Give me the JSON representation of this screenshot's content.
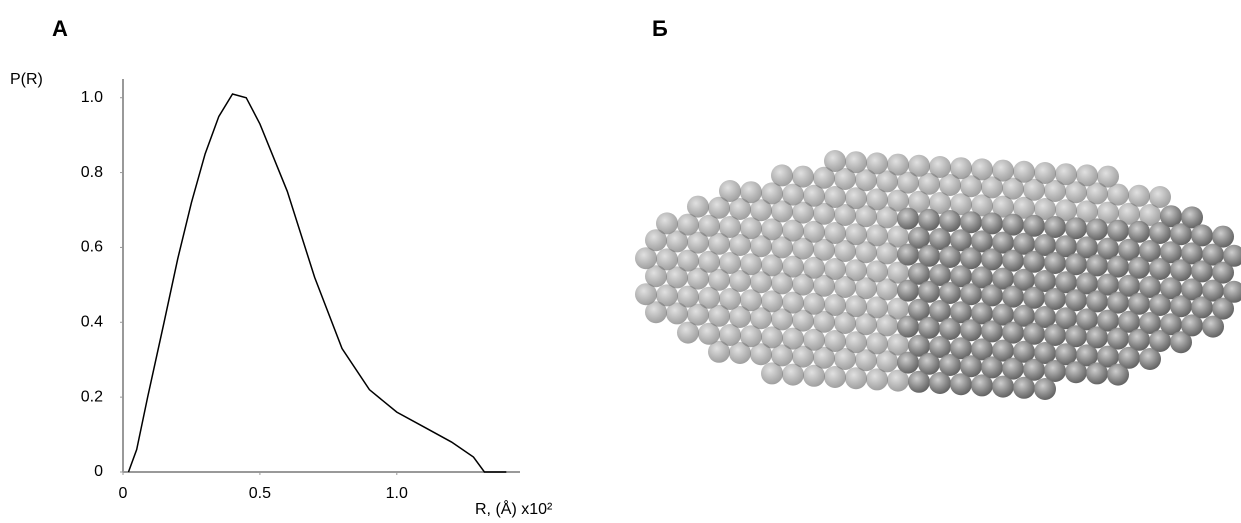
{
  "chart_data": {
    "type": "line",
    "panel_label": "А",
    "second_panel_label": "Б",
    "ylabel": "P(R)",
    "xlabel": "R, (Å) x10²",
    "x": [
      0.02,
      0.05,
      0.09,
      0.15,
      0.2,
      0.25,
      0.3,
      0.35,
      0.4,
      0.45,
      0.5,
      0.6,
      0.7,
      0.8,
      0.9,
      1.0,
      1.1,
      1.2,
      1.28,
      1.32,
      1.4
    ],
    "series": [
      {
        "name": "P(R)",
        "color": "#000000",
        "values": [
          0,
          0.06,
          0.2,
          0.4,
          0.57,
          0.72,
          0.85,
          0.95,
          1.01,
          1.0,
          0.93,
          0.75,
          0.52,
          0.33,
          0.22,
          0.16,
          0.12,
          0.08,
          0.04,
          0,
          0
        ]
      }
    ],
    "xlim": [
      0,
      1.45
    ],
    "ylim": [
      0,
      1.05
    ],
    "xticks": [
      0,
      0.5,
      {
        "value": 1,
        "label": "1.0"
      }
    ],
    "yticks": [
      0,
      0.2,
      0.4,
      0.6,
      0.8,
      {
        "value": 1,
        "label": "1.0"
      }
    ],
    "grid": false
  }
}
